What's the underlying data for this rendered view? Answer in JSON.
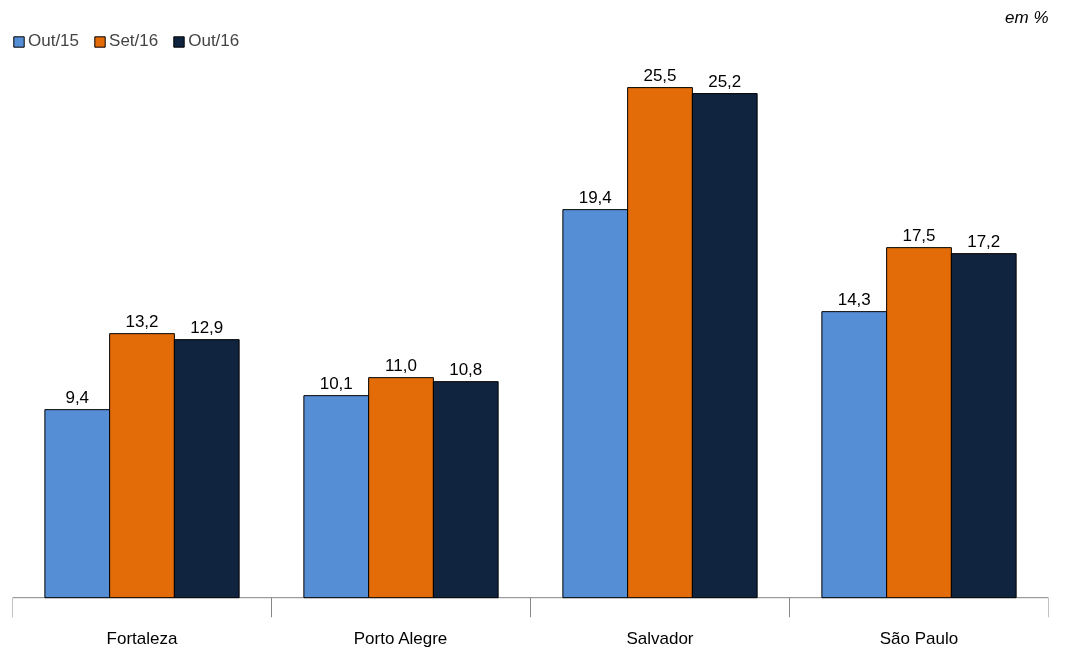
{
  "chart_data": {
    "type": "bar",
    "categories": [
      "Fortaleza",
      "Porto Alegre",
      "Salvador",
      "São Paulo"
    ],
    "series": [
      {
        "name": "Out/15",
        "color": "#558ed5",
        "values": [
          9.4,
          10.1,
          19.4,
          14.3
        ],
        "value_labels": [
          "9,4",
          "10,1",
          "19,4",
          "14,3"
        ]
      },
      {
        "name": "Set/16",
        "color": "#e36c09",
        "values": [
          13.2,
          11.0,
          25.5,
          17.5
        ],
        "value_labels": [
          "13,2",
          "11,0",
          "25,5",
          "17,5"
        ]
      },
      {
        "name": "Out/16",
        "color": "#10243f",
        "values": [
          12.9,
          10.8,
          25.2,
          17.2
        ],
        "value_labels": [
          "12,9",
          "10,8",
          "25,2",
          "17,2"
        ]
      }
    ],
    "annotations": [
      "em %"
    ],
    "legend": "top left",
    "grid": false
  }
}
